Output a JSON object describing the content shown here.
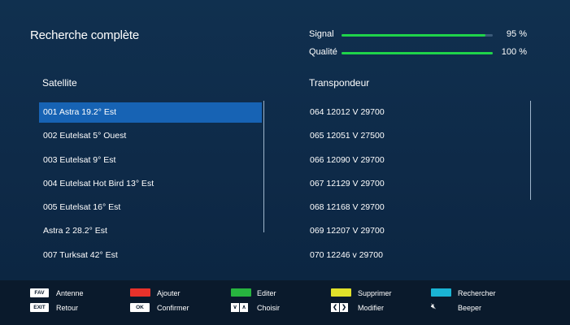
{
  "title": "Recherche complète",
  "meters": {
    "signal": {
      "label": "Signal",
      "value": "95 %",
      "level": 0.95
    },
    "quality": {
      "label": "Qualité",
      "value": "100 %",
      "level": 1.0
    }
  },
  "satellite": {
    "header": "Satellite",
    "items": [
      "001 Astra 19.2° Est",
      "002 Eutelsat 5° Ouest",
      "003 Eutelsat 9° Est",
      "004 Eutelsat Hot Bird 13° Est",
      "005 Eutelsat 16° Est",
      "Astra 2 28.2° Est",
      "007 Turksat 42° Est"
    ],
    "selected_index": 0
  },
  "transponder": {
    "header": "Transpondeur",
    "items": [
      "064 12012 V 29700",
      "065 12051 V 27500",
      "066 12090 V 29700",
      "067 12129 V 29700",
      "068 12168 V 29700",
      "069 12207 V 29700",
      "070 12246 v 29700"
    ]
  },
  "footer": {
    "fav_key": "FAV",
    "fav_label": "Antenne",
    "exit_key": "EXIT",
    "exit_label": "Retour",
    "red_label": "Ajouter",
    "ok_key": "OK",
    "ok_label": "Confirmer",
    "green_label": "Editer",
    "updown_label": "Choisir",
    "yellow_label": "Supprimer",
    "leftright_label": "Modifier",
    "blue_label": "Rechercher",
    "mute_label": "Beeper",
    "colors": {
      "red": "#e8322b",
      "green": "#27b43f",
      "yellow": "#e0e02a",
      "blue": "#1ab4d4"
    }
  }
}
